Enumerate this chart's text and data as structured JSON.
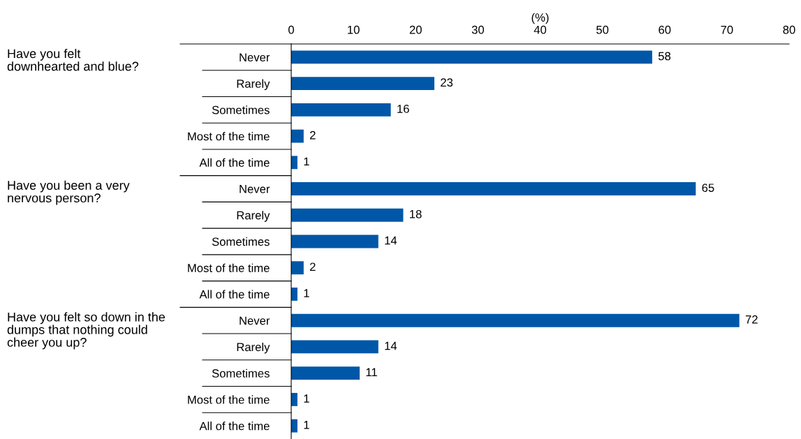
{
  "chart_data": {
    "type": "bar",
    "orientation": "horizontal",
    "xlabel": "(%)",
    "categories": [
      "Never",
      "Rarely",
      "Sometimes",
      "Most of the time",
      "All of the time",
      "Never",
      "Rarely",
      "Sometimes",
      "Most of the time",
      "All of the time",
      "Never",
      "Rarely",
      "Sometimes",
      "Most of the time",
      "All of the time"
    ],
    "values": [
      58,
      23,
      16,
      2,
      1,
      65,
      18,
      14,
      2,
      1,
      72,
      14,
      11,
      1,
      1
    ],
    "color": "#0057a8",
    "xlim": [
      0,
      80
    ],
    "xticks": [
      0,
      10,
      20,
      30,
      40,
      50,
      60,
      70,
      80
    ],
    "data_labels": true,
    "grid": false,
    "legend": false,
    "annotations": [
      "Have you felt\ndownhearted and blue?",
      "Have you been a very\nnervous person?",
      "Have you felt so down in the\ndumps that nothing could\ncheer you up?"
    ]
  }
}
